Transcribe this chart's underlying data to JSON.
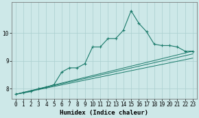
{
  "title": "",
  "xlabel": "Humidex (Indice chaleur)",
  "bg_color": "#cde8e8",
  "line_color": "#1a7a6a",
  "grid_color": "#aacfcf",
  "xlim": [
    -0.5,
    23.5
  ],
  "ylim": [
    7.65,
    11.1
  ],
  "yticks": [
    8,
    9,
    10
  ],
  "xticks": [
    0,
    1,
    2,
    3,
    4,
    5,
    6,
    7,
    8,
    9,
    10,
    11,
    12,
    13,
    14,
    15,
    16,
    17,
    18,
    19,
    20,
    21,
    22,
    23
  ],
  "series_main": {
    "x": [
      0,
      1,
      2,
      3,
      4,
      5,
      6,
      7,
      8,
      9,
      10,
      11,
      12,
      13,
      14,
      15,
      16,
      17,
      18,
      19,
      20,
      21,
      22,
      23
    ],
    "y": [
      7.8,
      7.85,
      7.9,
      8.0,
      8.05,
      8.15,
      8.6,
      8.75,
      8.75,
      8.9,
      9.5,
      9.5,
      9.8,
      9.8,
      10.1,
      10.8,
      10.35,
      10.05,
      9.6,
      9.55,
      9.55,
      9.5,
      9.35,
      9.35
    ]
  },
  "series_line1": {
    "x": [
      0,
      23
    ],
    "y": [
      7.8,
      9.35
    ]
  },
  "series_line2": {
    "x": [
      0,
      23
    ],
    "y": [
      7.8,
      9.1
    ]
  },
  "series_line3": {
    "x": [
      0,
      23
    ],
    "y": [
      7.8,
      9.35
    ]
  }
}
